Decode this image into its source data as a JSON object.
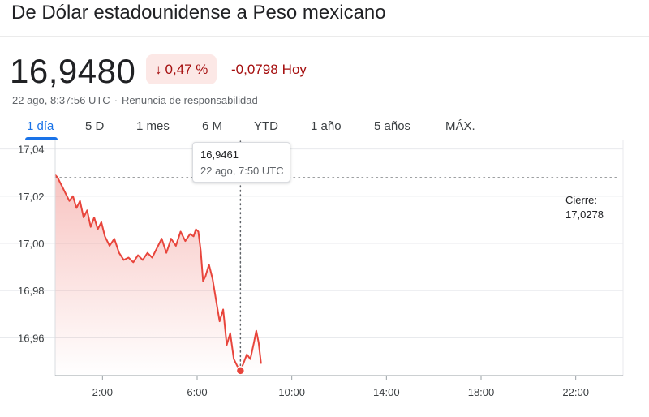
{
  "header": {
    "title": "De Dólar estadounidense a Peso mexicano",
    "price": "16,9480",
    "change_arrow": "↓",
    "change_pct": "0,47 %",
    "change_abs": "-0,0798",
    "change_period": "Hoy",
    "timestamp": "22 ago, 8:37:56 UTC",
    "disclaimer": "Renuncia de responsabilidad"
  },
  "tabs": [
    {
      "label": "1 día",
      "active": true
    },
    {
      "label": "5 D"
    },
    {
      "label": "1 mes"
    },
    {
      "label": "6 M"
    },
    {
      "label": "YTD"
    },
    {
      "label": "1 año"
    },
    {
      "label": "5 años"
    },
    {
      "label": "MÁX."
    }
  ],
  "tooltip": {
    "price": "16,9461",
    "time": "22 ago, 7:50 UTC"
  },
  "close": {
    "label": "Cierre:",
    "value": "17,0278"
  },
  "colors": {
    "line": "#e8453c",
    "negative": "#a50e0e",
    "negative_bg": "#fce8e6",
    "accent": "#1a73e8",
    "grid": "#e8eaed"
  },
  "chart_data": {
    "type": "line",
    "x_unit": "hours UTC",
    "xlim": [
      0,
      24
    ],
    "ylim": [
      16.944,
      17.044
    ],
    "y_ticks": [
      {
        "value": 16.96,
        "label": "16,96"
      },
      {
        "value": 16.98,
        "label": "16,98"
      },
      {
        "value": 17.0,
        "label": "17,00"
      },
      {
        "value": 17.02,
        "label": "17,02"
      },
      {
        "value": 17.04,
        "label": "17,04"
      }
    ],
    "x_ticks": [
      {
        "value": 2,
        "label": "2:00"
      },
      {
        "value": 6,
        "label": "6:00"
      },
      {
        "value": 10,
        "label": "10:00"
      },
      {
        "value": 14,
        "label": "14:00"
      },
      {
        "value": 18,
        "label": "18:00"
      },
      {
        "value": 22,
        "label": "22:00"
      }
    ],
    "previous_close": 17.0278,
    "highlight": {
      "x": 7.83,
      "y": 16.9461
    },
    "series": [
      {
        "x": [
          0,
          0.1,
          0.2,
          0.3,
          0.45,
          0.6,
          0.75,
          0.9,
          1.05,
          1.2,
          1.35,
          1.5,
          1.65,
          1.8,
          1.95,
          2.1,
          2.3,
          2.5,
          2.7,
          2.9,
          3.1,
          3.3,
          3.5,
          3.7,
          3.9,
          4.1,
          4.3,
          4.5,
          4.7,
          4.9,
          5.1,
          5.3,
          5.5,
          5.7,
          5.85,
          5.95,
          6.05,
          6.15,
          6.25,
          6.35,
          6.5,
          6.65,
          6.8,
          6.95,
          7.1,
          7.25,
          7.4,
          7.55,
          7.7,
          7.83,
          7.95,
          8.1,
          8.25,
          8.4,
          8.5,
          8.6,
          8.7
        ],
        "y": [
          17.029,
          17.028,
          17.026,
          17.024,
          17.021,
          17.018,
          17.02,
          17.015,
          17.018,
          17.011,
          17.014,
          17.007,
          17.011,
          17.006,
          17.009,
          17.003,
          16.999,
          17.002,
          16.996,
          16.993,
          16.994,
          16.992,
          16.995,
          16.993,
          16.996,
          16.994,
          16.998,
          17.002,
          16.996,
          17.002,
          16.999,
          17.005,
          17.001,
          17.004,
          17.003,
          17.006,
          17.005,
          16.997,
          16.984,
          16.986,
          16.991,
          16.985,
          16.976,
          16.967,
          16.972,
          16.957,
          16.962,
          16.951,
          16.948,
          16.9461,
          16.949,
          16.953,
          16.951,
          16.958,
          16.963,
          16.958,
          16.949
        ]
      }
    ]
  }
}
